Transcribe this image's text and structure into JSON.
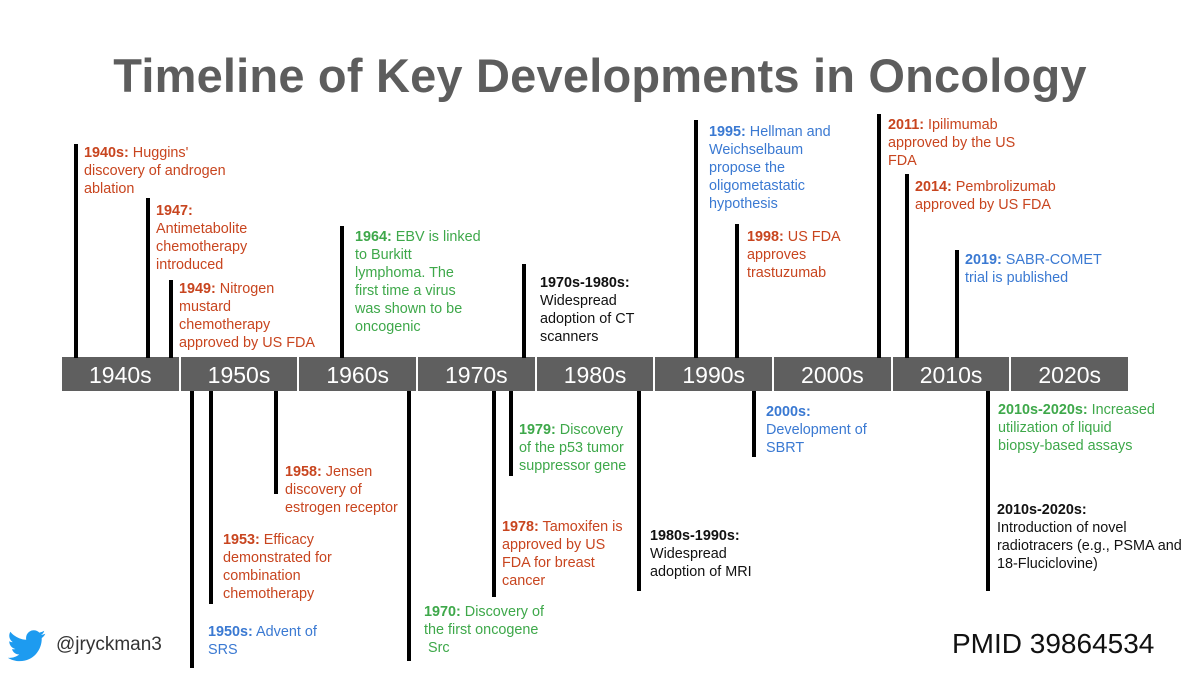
{
  "title": "Timeline of Key Developments in Oncology",
  "decades": [
    "1940s",
    "1950s",
    "1960s",
    "1970s",
    "1980s",
    "1990s",
    "2000s",
    "2010s",
    "2020s"
  ],
  "events": [
    {
      "id": "e1940",
      "year": "1940s:",
      "lines": [
        " Huggins'",
        "discovery of androgen",
        "ablation"
      ],
      "color": "red"
    },
    {
      "id": "e1947",
      "year": "1947:",
      "lines": [
        "",
        "Antimetabolite",
        "chemotherapy",
        "introduced"
      ],
      "color": "red"
    },
    {
      "id": "e1949",
      "year": "1949:",
      "lines": [
        " Nitrogen",
        "mustard",
        "chemotherapy",
        "approved by US FDA"
      ],
      "color": "red"
    },
    {
      "id": "e1964",
      "year": "1964:",
      "lines": [
        " EBV is linked",
        "to Burkitt",
        "lymphoma. The",
        "first time a virus",
        "was shown to be",
        "oncogenic"
      ],
      "color": "green"
    },
    {
      "id": "e1970s80s",
      "year": "1970s-1980s:",
      "lines": [
        "",
        "Widespread",
        "adoption of CT",
        "scanners"
      ],
      "color": "black"
    },
    {
      "id": "e1995",
      "year": "1995:",
      "lines": [
        " Hellman and",
        "Weichselbaum",
        "propose the",
        "oligometastatic",
        "hypothesis"
      ],
      "color": "blue"
    },
    {
      "id": "e1998",
      "year": "1998:",
      "lines": [
        " US FDA",
        "approves",
        "trastuzumab"
      ],
      "color": "red"
    },
    {
      "id": "e2011",
      "year": "2011:",
      "lines": [
        " Ipilimumab",
        "approved by the US",
        "FDA"
      ],
      "color": "red"
    },
    {
      "id": "e2014",
      "year": "2014:",
      "lines": [
        " Pembrolizumab",
        "approved by US FDA"
      ],
      "color": "red"
    },
    {
      "id": "e2019",
      "year": "2019:",
      "lines": [
        " SABR-COMET",
        "trial is published"
      ],
      "color": "blue"
    },
    {
      "id": "e1950s",
      "year": "1950s:",
      "lines": [
        " Advent of",
        "SRS"
      ],
      "color": "blue"
    },
    {
      "id": "e1953",
      "year": "1953:",
      "lines": [
        " Efficacy",
        "demonstrated for",
        "combination",
        "chemotherapy"
      ],
      "color": "red"
    },
    {
      "id": "e1958",
      "year": "1958:",
      "lines": [
        " Jensen",
        "discovery of",
        "estrogen receptor"
      ],
      "color": "red"
    },
    {
      "id": "e1970",
      "year": "1970:",
      "lines": [
        " Discovery of",
        "the first oncogene",
        "Src"
      ],
      "color": "green"
    },
    {
      "id": "e1978",
      "year": "1978:",
      "lines": [
        " Tamoxifen is",
        "approved by US",
        "FDA for breast",
        "cancer"
      ],
      "color": "red"
    },
    {
      "id": "e1979",
      "year": "1979:",
      "lines": [
        " Discovery",
        "of the p53 tumor",
        "suppressor gene"
      ],
      "color": "green"
    },
    {
      "id": "e1980s90s",
      "year": "1980s-1990s:",
      "lines": [
        "",
        "Widespread",
        "adoption of MRI"
      ],
      "color": "black"
    },
    {
      "id": "e2000s",
      "year": "2000s:",
      "lines": [
        "",
        "Development of",
        "SBRT"
      ],
      "color": "blue"
    },
    {
      "id": "e2010s20s_a",
      "year": "2010s-2020s:",
      "lines": [
        " Increased",
        "utilization of liquid",
        "biopsy-based assays"
      ],
      "color": "green"
    },
    {
      "id": "e2010s20s_b",
      "year": "2010s-2020s:",
      "lines": [
        "",
        "Introduction of novel",
        "radiotracers (e.g., PSMA and",
        "18-Fluciclovine)"
      ],
      "color": "black"
    }
  ],
  "footer": {
    "handle": "@jryckman3",
    "pmid": "PMID 39864534",
    "icon": "twitter-bird-icon"
  },
  "colors": {
    "red": "#c8451f",
    "green": "#3ea84a",
    "blue": "#3a79d2",
    "black": "#111111",
    "bar": "#5f5f5f",
    "title": "#5d5d5d"
  }
}
